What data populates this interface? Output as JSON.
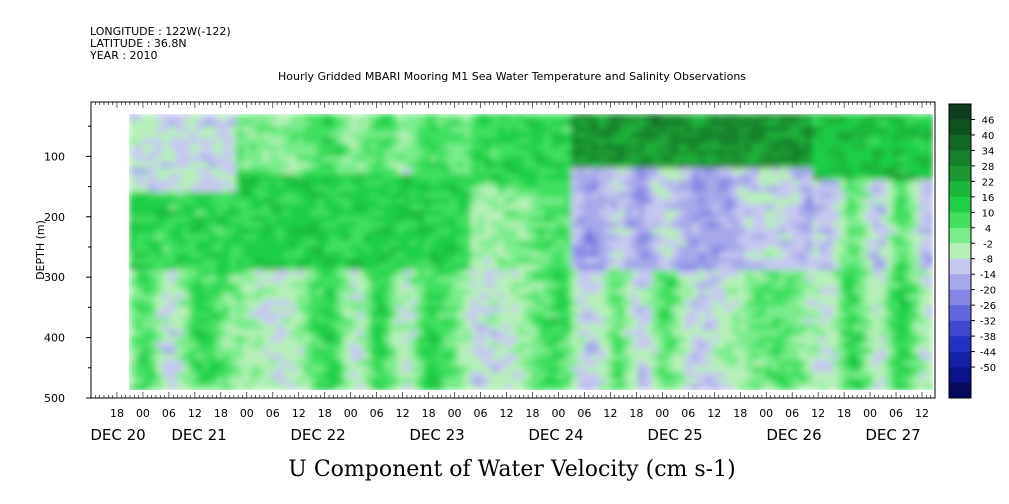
{
  "header": {
    "line1": "LONGITUDE : 122W(-122)",
    "line2": "LATITUDE : 36.8N",
    "line3": "YEAR : 2010"
  },
  "chart_data": {
    "type": "heatmap",
    "title": "Hourly Gridded MBARI Mooring M1 Sea Water Temperature and Salinity Observations",
    "variable_label": "U Component of Water Velocity (cm s-1)",
    "ylabel": "DEPTH (m)",
    "ylim": [
      500,
      10
    ],
    "y_inverted": true,
    "y_ticks": [
      100,
      200,
      300,
      400,
      500
    ],
    "x_range": [
      "DEC 19 12:00",
      "DEC 27 15:00"
    ],
    "data_x_start": "DEC 20 00:00",
    "hour_ticks": [
      "18",
      "00",
      "06",
      "12",
      "18",
      "00",
      "06",
      "12",
      "18",
      "00",
      "06",
      "12",
      "18",
      "00",
      "06",
      "12",
      "18",
      "00",
      "06",
      "12",
      "18",
      "00",
      "06",
      "12",
      "18",
      "00",
      "06",
      "12",
      "18",
      "00",
      "06",
      "12"
    ],
    "date_labels": [
      "DEC 20",
      "DEC 21",
      "DEC 22",
      "DEC 23",
      "DEC 24",
      "DEC 25",
      "DEC 26",
      "DEC 27"
    ],
    "colorbar": {
      "levels": [
        46,
        40,
        34,
        28,
        22,
        16,
        10,
        4,
        -2,
        -8,
        -14,
        -20,
        -26,
        -32,
        -38,
        -44,
        -50
      ],
      "colors_top_to_bottom": [
        "#0d3d1a",
        "#10521f",
        "#146826",
        "#17802c",
        "#1a9932",
        "#1bb63a",
        "#1fcf46",
        "#40e060",
        "#7aec8c",
        "#b6f0b8",
        "#c6c8f0",
        "#a6a8ea",
        "#8486e4",
        "#6266dc",
        "#4048d2",
        "#2430c2",
        "#1420a8",
        "#0a1488",
        "#050a5c"
      ]
    },
    "dominant_pattern": [
      {
        "period": "DEC 20 - DEC 21",
        "surface": "negative (blue)",
        "mid_depth": "positive (green)",
        "deep": "mixed"
      },
      {
        "period": "DEC 21 - DEC 23",
        "surface": "mixed",
        "mid_depth": "positive (green)",
        "deep": "mixed green/blue"
      },
      {
        "period": "DEC 23 - DEC 26",
        "surface": "strong positive (dark green)",
        "mid_depth": "negative (blue)",
        "deep": "mixed"
      },
      {
        "period": "DEC 26 - DEC 27",
        "surface": "positive (green)",
        "mid_depth": "mixed",
        "deep": "mixed"
      }
    ]
  }
}
